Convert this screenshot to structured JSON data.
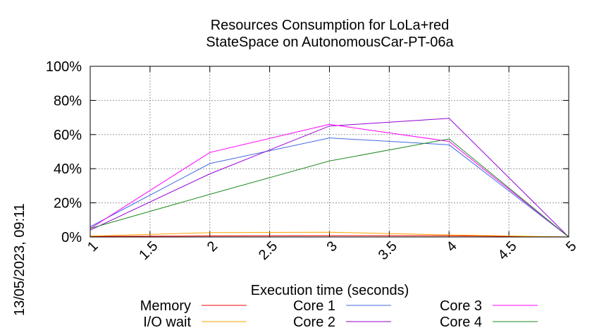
{
  "chart_data": {
    "type": "line",
    "title_lines": [
      "Resources Consumption for LoLa+red",
      "StateSpace on AutonomousCar-PT-06a"
    ],
    "xlabel": "Execution time (seconds)",
    "ylabel": "",
    "side_label": "13/05/2023, 09:11",
    "xlim": [
      1,
      5
    ],
    "ylim": [
      0,
      100
    ],
    "x_ticks": [
      1,
      1.5,
      2,
      2.5,
      3,
      3.5,
      4,
      4.5,
      5
    ],
    "x_tick_labels": [
      "1",
      "1.5",
      "2",
      "2.5",
      "3",
      "3.5",
      "4",
      "4.5",
      "5"
    ],
    "y_ticks": [
      0,
      20,
      40,
      60,
      80,
      100
    ],
    "y_tick_labels": [
      "0%",
      "20%",
      "40%",
      "60%",
      "80%",
      "100%"
    ],
    "grid": true,
    "legend_position": "bottom",
    "series": [
      {
        "name": "Memory",
        "color": "#ff0000",
        "x": [
          1,
          2,
          3,
          4,
          5
        ],
        "y": [
          0.3,
          0.6,
          0.8,
          0.7,
          0
        ]
      },
      {
        "name": "I/O wait",
        "color": "#ffa500",
        "x": [
          1,
          2,
          3,
          4,
          5
        ],
        "y": [
          0.5,
          2.5,
          2.8,
          1.2,
          0
        ]
      },
      {
        "name": "Core 1",
        "color": "#4169e1",
        "x": [
          1,
          2,
          3,
          4,
          5
        ],
        "y": [
          6,
          43,
          58,
          54,
          0
        ]
      },
      {
        "name": "Core 2",
        "color": "#9400d3",
        "x": [
          1,
          2,
          3,
          4,
          5
        ],
        "y": [
          4,
          37,
          65,
          69.5,
          0
        ]
      },
      {
        "name": "Core 3",
        "color": "#ff00ff",
        "x": [
          1,
          2,
          3,
          4,
          5
        ],
        "y": [
          5,
          49.5,
          66,
          56,
          0
        ]
      },
      {
        "name": "Core 4",
        "color": "#228b22",
        "x": [
          1,
          2,
          3,
          4,
          5
        ],
        "y": [
          5,
          25,
          44.5,
          57.5,
          0
        ]
      }
    ]
  }
}
